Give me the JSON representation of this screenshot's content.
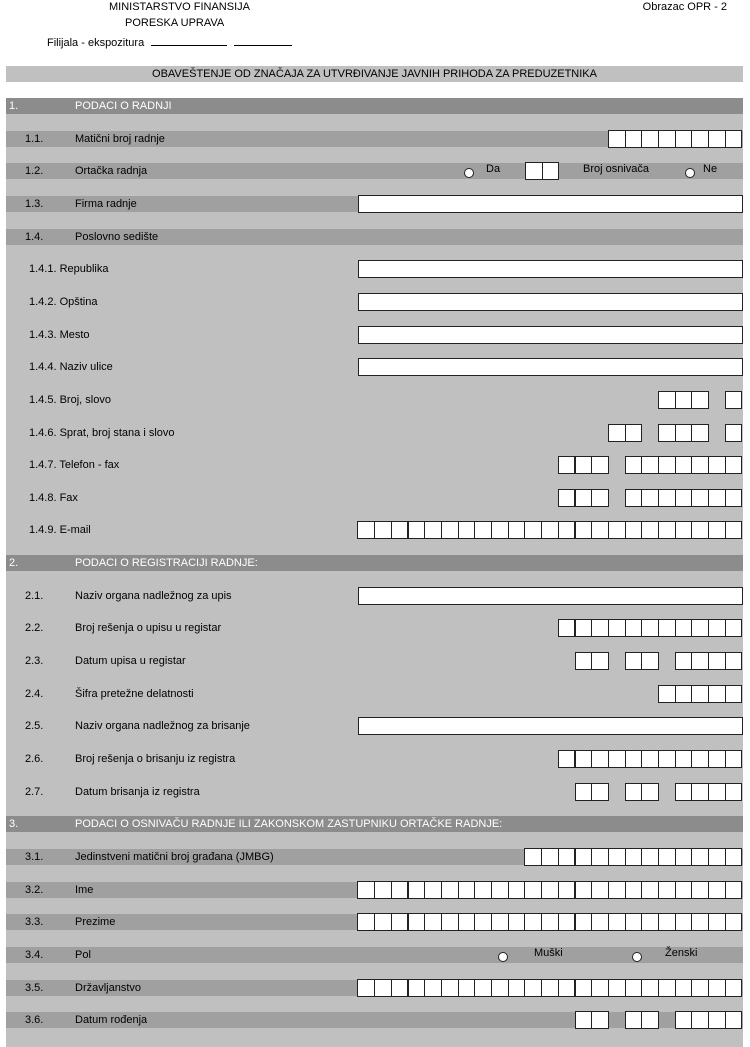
{
  "header": {
    "ministry": "MINISTARSTVO FINANSIJA",
    "agency": "PORESKA UPRAVA",
    "branch_label": "Filijala - ekspozitura",
    "form_code": "Obrazac OPR - 2"
  },
  "form_title": "OBAVEŠTENJE OD ZNAČAJA ZA UTVRĐIVANJE JAVNIH PRIHODA ZA PREDUZETNIKA",
  "rows": [
    {
      "type": "section",
      "num": "1.",
      "label": "PODACI O RADNJI"
    },
    {
      "type": "item",
      "num": "1.1.",
      "label": "Matični broj radnje",
      "stripe": true,
      "boxes": [
        8
      ]
    },
    {
      "type": "partner",
      "num": "1.2.",
      "label": "Ortačka radnja",
      "stripe": true,
      "yes": "Da",
      "count_label": "Broj osnivača",
      "no": "Ne",
      "boxes": [
        2
      ]
    },
    {
      "type": "item",
      "num": "1.3.",
      "label": "Firma radnje",
      "stripe": true,
      "wide": true
    },
    {
      "type": "item",
      "num": "1.4.",
      "label": "Poslovno sedište",
      "stripe": true
    },
    {
      "type": "sub",
      "label": "1.4.1. Republika",
      "wide": true
    },
    {
      "type": "sub",
      "label": "1.4.2. Opština",
      "wide": true
    },
    {
      "type": "sub",
      "label": "1.4.3. Mesto",
      "wide": true
    },
    {
      "type": "sub",
      "label": "1.4.4. Naziv ulice",
      "wide": true
    },
    {
      "type": "sub",
      "label": "1.4.5. Broj, slovo",
      "boxes": [
        3,
        1
      ]
    },
    {
      "type": "sub",
      "label": "1.4.6. Sprat, broj stana i slovo",
      "boxes": [
        2,
        3,
        1
      ]
    },
    {
      "type": "sub",
      "label": "1.4.7. Telefon - fax",
      "boxes": [
        3,
        7
      ]
    },
    {
      "type": "sub",
      "label": "1.4.8. Fax",
      "boxes": [
        3,
        7
      ]
    },
    {
      "type": "sub",
      "label": "1.4.9. E-mail",
      "boxes": [
        23
      ]
    },
    {
      "type": "section",
      "num": "2.",
      "label": "PODACI O REGISTRACIJI RADNJE:"
    },
    {
      "type": "item",
      "num": "2.1.",
      "label": "Naziv organa nadležnog za upis",
      "wide": true
    },
    {
      "type": "item",
      "num": "2.2.",
      "label": "Broj rešenja o upisu u registar",
      "boxes": [
        11
      ]
    },
    {
      "type": "item",
      "num": "2.3.",
      "label": "Datum upisa u registar",
      "boxes": [
        2,
        2,
        4
      ]
    },
    {
      "type": "item",
      "num": "2.4.",
      "label": "Šifra pretežne delatnosti",
      "boxes": [
        5
      ]
    },
    {
      "type": "item",
      "num": "2.5.",
      "label": "Naziv organa nadležnog za brisanje",
      "wide": true
    },
    {
      "type": "item",
      "num": "2.6.",
      "label": "Broj rešenja o brisanju iz registra",
      "boxes": [
        11
      ]
    },
    {
      "type": "item",
      "num": "2.7.",
      "label": "Datum brisanja iz registra",
      "boxes": [
        2,
        2,
        4
      ]
    },
    {
      "type": "section",
      "num": "3.",
      "label": "PODACI O OSNIVAČU RADNJE ILI ZAKONSKOM ZASTUPNIKU ORTAČKE RADNJE:"
    },
    {
      "type": "item",
      "num": "3.1.",
      "label": "Jedinstveni matični broj građana (JMBG)",
      "stripe": true,
      "boxes": [
        13
      ]
    },
    {
      "type": "item",
      "num": "3.2.",
      "label": "Ime",
      "stripe": true,
      "boxes": [
        23
      ]
    },
    {
      "type": "item",
      "num": "3.3.",
      "label": "Prezime",
      "stripe": true,
      "boxes": [
        23
      ]
    },
    {
      "type": "gender",
      "num": "3.4.",
      "label": "Pol",
      "stripe": true,
      "male": "Muški",
      "female": "Ženski"
    },
    {
      "type": "item",
      "num": "3.5.",
      "label": "Državljanstvo",
      "stripe": true,
      "boxes": [
        23
      ]
    },
    {
      "type": "item",
      "num": "3.6.",
      "label": "Datum rođenja",
      "stripe": true,
      "boxes": [
        2,
        2,
        4
      ]
    }
  ]
}
